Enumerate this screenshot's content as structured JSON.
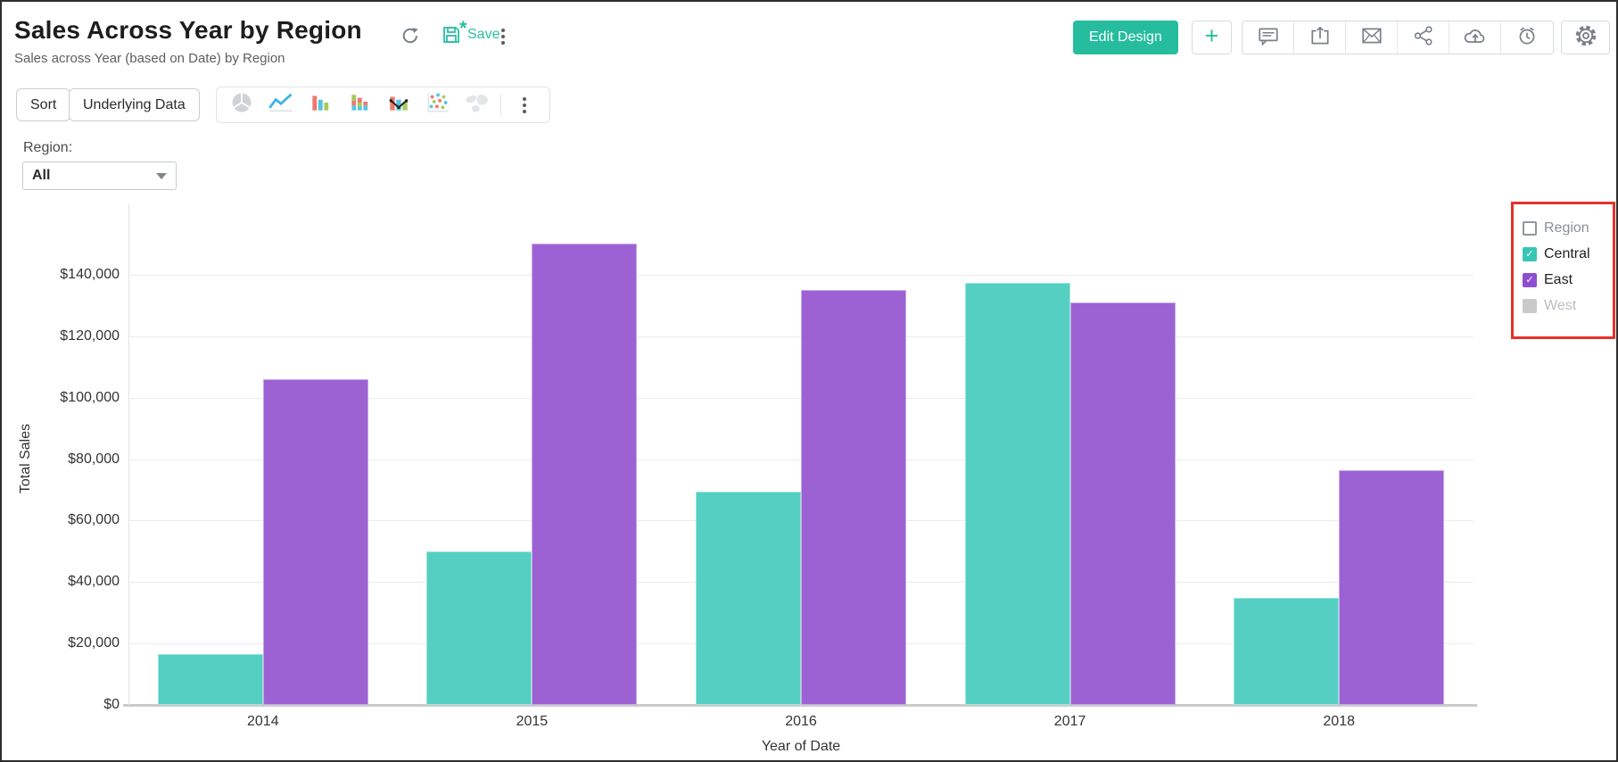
{
  "header": {
    "title": "Sales Across Year by Region",
    "subtitle": "Sales across Year (based on Date) by Region",
    "save_label": "Save",
    "edit_design_label": "Edit Design",
    "plus_label": "+",
    "action_icons": [
      "comment",
      "export",
      "email",
      "share",
      "cloud-upload",
      "alarm"
    ],
    "settings_icon": "gear"
  },
  "toolbar": {
    "sort_label": "Sort",
    "underlying_data_label": "Underlying Data",
    "chart_types": [
      {
        "name": "pie",
        "enabled": true
      },
      {
        "name": "line",
        "enabled": true
      },
      {
        "name": "bar",
        "enabled": true
      },
      {
        "name": "stacked-bar",
        "enabled": true
      },
      {
        "name": "bar-line",
        "enabled": true
      },
      {
        "name": "scatter",
        "enabled": true
      },
      {
        "name": "map",
        "enabled": false
      }
    ]
  },
  "filter": {
    "label": "Region:",
    "value": "All"
  },
  "legend": {
    "title": "Region",
    "items": [
      {
        "label": "Central",
        "color": "#38c6b4",
        "checked": true,
        "enabled": true
      },
      {
        "label": "East",
        "color": "#8d4ed1",
        "checked": true,
        "enabled": true
      },
      {
        "label": "West",
        "color": "#c9c9c9",
        "checked": false,
        "enabled": false
      }
    ],
    "highlight_color": "#e8312a"
  },
  "chart_data": {
    "type": "bar",
    "title": "Sales Across Year by Region",
    "categories": [
      "2014",
      "2015",
      "2016",
      "2017",
      "2018"
    ],
    "series": [
      {
        "name": "Central",
        "color": "#54cfc2",
        "values": [
          16500,
          50000,
          69500,
          137500,
          35000
        ]
      },
      {
        "name": "East",
        "color": "#9c62d4",
        "values": [
          106000,
          150000,
          135000,
          131000,
          76500
        ]
      }
    ],
    "xlabel": "Year of Date",
    "ylabel": "Total Sales",
    "ylim": [
      0,
      160000
    ],
    "ytick_step": 20000,
    "ytick_prefix": "$",
    "grid": true,
    "legend_position": "right"
  },
  "colors": {
    "accent": "#26bd9e",
    "save_teal": "#2abfa2",
    "bar_central": "#54cfc2",
    "bar_east": "#9c62d4",
    "legend_highlight": "#e8312a",
    "icon_gray": "#7a8087"
  }
}
